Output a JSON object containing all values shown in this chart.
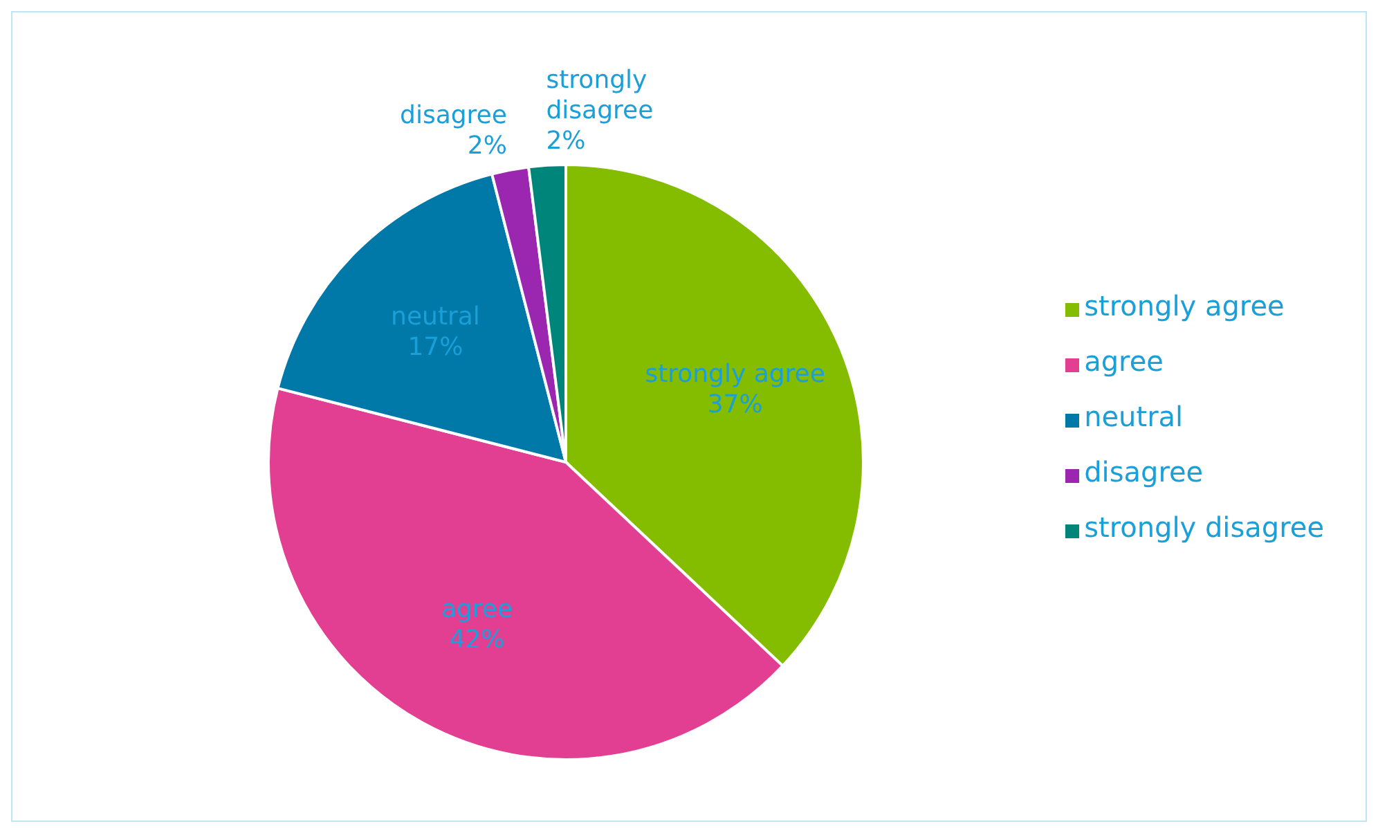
{
  "chart_data": {
    "type": "pie",
    "categories": [
      "strongly agree",
      "agree",
      "neutral",
      "disagree",
      "strongly disagree"
    ],
    "values": [
      37,
      42,
      17,
      2,
      2
    ],
    "colors": [
      "#84bc00",
      "#e23f93",
      "#0079a8",
      "#9b27b0",
      "#00857a"
    ],
    "value_labels": [
      "37%",
      "42%",
      "17%",
      "2%",
      "2%"
    ],
    "legend": "right"
  }
}
